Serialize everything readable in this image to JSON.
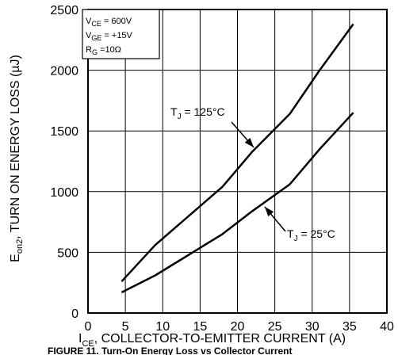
{
  "chart_data": {
    "type": "line",
    "xlabel": "I",
    "xlabel_sub": "CE",
    "xlabel_rest": ", COLLECTOR-TO-EMITTER CURRENT (A)",
    "ylabel": "E",
    "ylabel_sub": "on2",
    "ylabel_rest": ", TURN ON ENERGY LOSS (µJ)",
    "xlim": [
      0,
      40
    ],
    "ylim": [
      0,
      2500
    ],
    "xticks": [
      0,
      5,
      10,
      15,
      20,
      25,
      30,
      35,
      40
    ],
    "yticks": [
      0,
      500,
      1000,
      1500,
      2000,
      2500
    ],
    "grid": true,
    "conditions": {
      "vce": {
        "main": "V",
        "sub": "CE",
        "rest": " =  600V"
      },
      "vge": {
        "main": "V",
        "sub": "GE",
        "rest": " =  +15V"
      },
      "rg": {
        "main": "R",
        "sub": "G",
        "rest": " =10Ω"
      }
    },
    "series": [
      {
        "label_main": "T",
        "label_sub": "J",
        "label_rest": " = 125°C",
        "x": [
          4.5,
          9,
          13.5,
          18,
          22,
          27,
          31,
          35.5
        ],
        "y": [
          260,
          560,
          800,
          1040,
          1330,
          1640,
          2000,
          2380
        ]
      },
      {
        "label_main": "T",
        "label_sub": "J",
        "label_rest": " = 25°C",
        "x": [
          4.5,
          9,
          13.5,
          18,
          22,
          27,
          31,
          35.5
        ],
        "y": [
          170,
          310,
          480,
          650,
          840,
          1060,
          1350,
          1650
        ]
      }
    ],
    "caption": "FIGURE 11. Turn-On Energy Loss vs Collector Current"
  },
  "colors": {
    "line": "#000000",
    "grid": "#000000",
    "background": "#ffffff"
  }
}
